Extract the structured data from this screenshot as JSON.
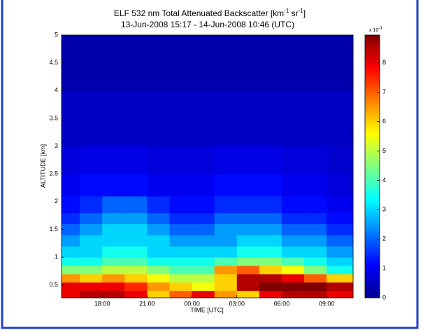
{
  "chart_data": {
    "type": "heatmap",
    "title": {
      "text": "ELF 532 nm Total Attenuated Backscatter [km",
      "sup1": "-1",
      "mid": " sr",
      "sup2": "-1",
      "end": "]"
    },
    "subtitle": "13-Jun-2008 15:17 - 14-Jun-2008 10:46 (UTC)",
    "x_label": "TIME [UTC]",
    "y_label": "ALTITUDE [km]",
    "xlim": [
      15.28,
      34.77
    ],
    "xticks": [
      {
        "value": 18,
        "label": "18:00"
      },
      {
        "value": 21,
        "label": "21:00"
      },
      {
        "value": 24,
        "label": "00:00"
      },
      {
        "value": 27,
        "label": "03:00"
      },
      {
        "value": 30,
        "label": "06:00"
      },
      {
        "value": 33,
        "label": "09:00"
      }
    ],
    "ylim": [
      0.27,
      5
    ],
    "yticks": [
      0.5,
      1,
      1.5,
      2,
      2.5,
      3,
      3.5,
      4,
      4.5,
      5
    ],
    "x_edges": [
      15.28,
      16.5,
      18,
      19.5,
      21,
      22.5,
      24,
      25.5,
      27,
      28.5,
      30,
      31.5,
      33,
      34.77
    ],
    "y_edges": [
      0.27,
      0.4,
      0.55,
      0.7,
      0.85,
      1.0,
      1.2,
      1.4,
      1.6,
      1.8,
      2.1,
      2.5,
      3.0,
      4.0,
      5.0
    ],
    "values": [
      [
        8,
        8.5,
        8.5,
        8,
        6,
        7,
        8,
        6.5,
        6,
        8,
        8.5,
        8.5,
        8
      ],
      [
        8,
        8,
        8,
        7.5,
        6.5,
        6,
        5.5,
        6,
        8.5,
        9,
        9,
        9,
        8.5
      ],
      [
        6.5,
        6,
        6.5,
        6,
        5.5,
        5,
        5,
        6,
        8.5,
        8.5,
        8,
        7,
        6
      ],
      [
        4.5,
        4.5,
        5,
        5,
        4.5,
        4,
        4,
        6.5,
        7,
        6,
        5.5,
        4.5,
        3.5
      ],
      [
        3.5,
        3.5,
        4,
        4,
        3.5,
        3.5,
        3.5,
        4,
        4.5,
        4.5,
        4,
        3.5,
        3
      ],
      [
        3,
        3,
        3.5,
        3.5,
        3,
        3,
        3,
        3,
        3.5,
        3.5,
        3,
        3,
        2.5
      ],
      [
        2.5,
        3,
        3,
        3,
        3,
        2.5,
        2.5,
        2.5,
        3,
        3,
        2.5,
        2.5,
        2
      ],
      [
        2,
        2.5,
        3,
        3,
        2.5,
        2,
        2,
        2.5,
        2.5,
        2.5,
        2,
        2,
        1.5
      ],
      [
        1.5,
        2,
        2.5,
        2.5,
        2,
        1.5,
        1.5,
        2,
        2,
        2,
        1.5,
        1.5,
        1.2
      ],
      [
        1.2,
        1.5,
        2,
        2,
        1.5,
        1.2,
        1.2,
        1.5,
        1.5,
        1.5,
        1.2,
        1.2,
        1
      ],
      [
        1,
        1.2,
        1.2,
        1.2,
        1,
        1,
        1,
        1.2,
        1.2,
        1.2,
        1,
        1,
        0.8
      ],
      [
        0.8,
        0.9,
        0.9,
        0.9,
        0.8,
        0.8,
        0.8,
        0.9,
        0.9,
        0.9,
        0.8,
        0.8,
        0.7
      ],
      [
        0.6,
        0.6,
        0.6,
        0.6,
        0.6,
        0.6,
        0.6,
        0.6,
        0.6,
        0.6,
        0.6,
        0.6,
        0.6
      ],
      [
        0.4,
        0.4,
        0.4,
        0.4,
        0.4,
        0.4,
        0.4,
        0.4,
        0.4,
        0.4,
        0.4,
        0.4,
        0.4
      ]
    ],
    "colormap": "jet",
    "clim": [
      0,
      8.95
    ],
    "cticks": [
      0,
      1,
      2,
      3,
      4,
      5,
      6,
      7,
      8
    ],
    "c_multiplier": {
      "text": "x 10",
      "exponent": "-3"
    }
  }
}
